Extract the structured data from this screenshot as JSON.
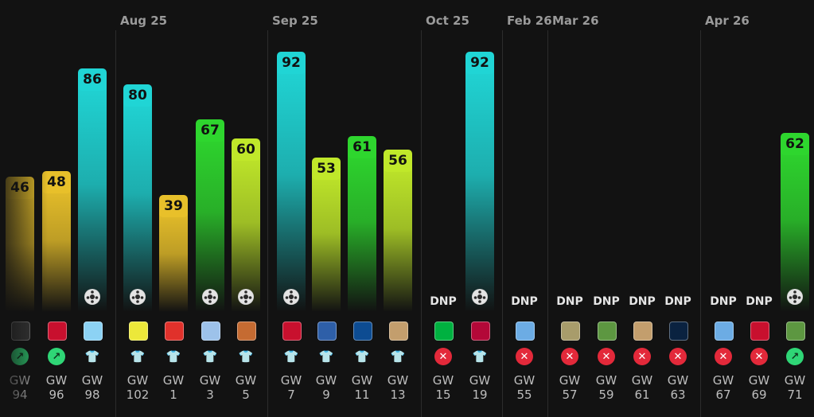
{
  "months": [
    {
      "label": "Aug 25",
      "col": 3
    },
    {
      "label": "Sep 25",
      "col": 7
    },
    {
      "label": "Oct 25",
      "col": 11
    },
    {
      "label": "Feb 26",
      "col": 13
    },
    {
      "label": "Mar 26",
      "col": 14
    },
    {
      "label": "Apr 26",
      "col": 18
    }
  ],
  "games": [
    {
      "gw": "94",
      "score": 46,
      "status": "ok",
      "club_color": "#3a3a3a",
      "ball": false
    },
    {
      "gw": "96",
      "score": 48,
      "status": "ok",
      "club_color": "#c8102e",
      "ball": false
    },
    {
      "gw": "98",
      "score": 86,
      "status": "shirt",
      "club_color": "#8cd2f4",
      "ball": true
    },
    {
      "gw": "102",
      "score": 80,
      "status": "shirt",
      "club_color": "#ece83a",
      "ball": true
    },
    {
      "gw": "1",
      "score": 39,
      "status": "shirt",
      "club_color": "#e0312b",
      "ball": false
    },
    {
      "gw": "3",
      "score": 67,
      "status": "shirt",
      "club_color": "#9dc2ea",
      "ball": true
    },
    {
      "gw": "5",
      "score": 60,
      "status": "shirt",
      "club_color": "#c56b32",
      "ball": true
    },
    {
      "gw": "7",
      "score": 92,
      "status": "shirt",
      "club_color": "#c8102e",
      "ball": true
    },
    {
      "gw": "9",
      "score": 53,
      "status": "shirt",
      "club_color": "#2e5fa8",
      "ball": false
    },
    {
      "gw": "11",
      "score": 61,
      "status": "shirt",
      "club_color": "#0d4c92",
      "ball": false
    },
    {
      "gw": "13",
      "score": 56,
      "status": "shirt",
      "club_color": "#c39e6d",
      "ball": false
    },
    {
      "gw": "15",
      "score": null,
      "label": "DNP",
      "status": "x",
      "club_color": "#00b140",
      "ball": false
    },
    {
      "gw": "19",
      "score": 92,
      "status": "shirt",
      "club_color": "#b30838",
      "ball": true
    },
    {
      "gw": "55",
      "score": null,
      "label": "DNP",
      "status": "x",
      "club_color": "#6cace4",
      "ball": false
    },
    {
      "gw": "57",
      "score": null,
      "label": "DNP",
      "status": "x",
      "club_color": "#a89c6b",
      "ball": false
    },
    {
      "gw": "59",
      "score": null,
      "label": "DNP",
      "status": "x",
      "club_color": "#5d9741",
      "ball": false
    },
    {
      "gw": "61",
      "score": null,
      "label": "DNP",
      "status": "x",
      "club_color": "#c39e6d",
      "ball": false
    },
    {
      "gw": "63",
      "score": null,
      "label": "DNP",
      "status": "x",
      "club_color": "#0a2240",
      "ball": false
    },
    {
      "gw": "67",
      "score": null,
      "label": "DNP",
      "status": "x",
      "club_color": "#6cace4",
      "ball": false
    },
    {
      "gw": "69",
      "score": null,
      "label": "DNP",
      "status": "x",
      "club_color": "#c8102e",
      "ball": false
    },
    {
      "gw": "71",
      "score": 62,
      "status": "ok",
      "club_color": "#5d9741",
      "ball": true
    }
  ],
  "gw_prefix": "GW",
  "colors": {
    "background": "#121212",
    "cyan": "#20d5d5",
    "green": "#2ed62e",
    "lime": "#c0e82a",
    "yellow": "#e8c02a",
    "dnp": "#e6e6e6"
  }
}
